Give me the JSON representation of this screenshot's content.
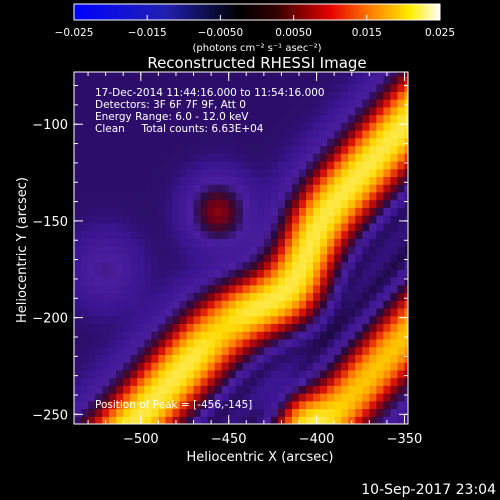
{
  "colorbar": {
    "ticks": [
      "-0.025",
      "-0.015",
      "-0.0050",
      "0.0050",
      "0.015",
      "0.025"
    ],
    "tick_values": [
      -0.025,
      -0.015,
      -0.005,
      0.005,
      0.015,
      0.025
    ],
    "range": [
      -0.025,
      0.025
    ],
    "unit_label": "(photons cm⁻² s⁻¹ asec⁻²)"
  },
  "chart_data": {
    "type": "heatmap",
    "title": "Reconstructed RHESSI Image",
    "xlabel": "Heliocentric X (arcsec)",
    "ylabel": "Heliocentric Y (arcsec)",
    "xlim": [
      -538,
      -348
    ],
    "ylim": [
      -255,
      -73
    ],
    "xticks": [
      -500,
      -450,
      -400,
      -350
    ],
    "xtick_labels": [
      "−500",
      "−450",
      "−400",
      "−350"
    ],
    "yticks": [
      -100,
      -150,
      -200,
      -250
    ],
    "ytick_labels": [
      "−100",
      "−150",
      "−200",
      "−250"
    ],
    "info_lines": [
      "17-Dec-2014 11:44:16.000 to 11:54:16.000",
      "Detectors: 3F 6F 7F 9F, Att 0",
      "Energy Range: 6.0 - 12.0 keV",
      "Clean     Total counts: 6.63E+04"
    ],
    "peak_text": "Position of Peak = [-456,-145]",
    "peak_position": [
      -456,
      -145
    ],
    "colormap": "RHESSI blue-black-red-yellow-white",
    "colors": {
      "low": "#0000ff",
      "mid": "#000000",
      "high_red": "#e60000",
      "high_orange": "#ff8800",
      "high_yellow": "#ffee00",
      "high_white": "#ffffff",
      "image_background": "#3a1590"
    }
  },
  "footer": {
    "timestamp": "10-Sep-2017 23:04"
  }
}
